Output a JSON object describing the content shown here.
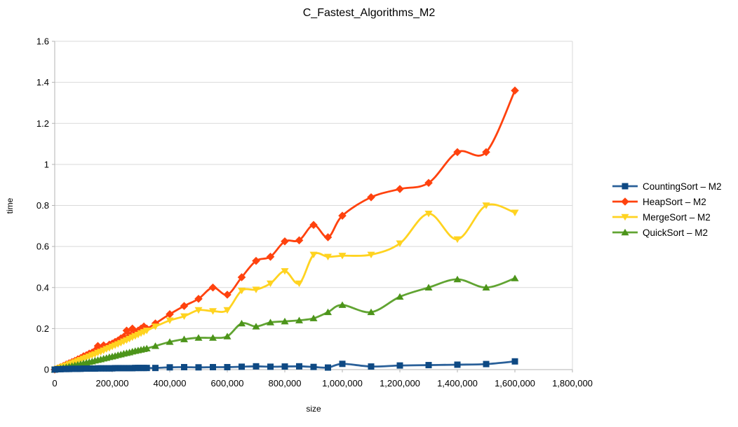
{
  "title": "C_Fastest_Algorithms_M2",
  "axes": {
    "x": {
      "label": "size",
      "min": 0,
      "max": 1800000,
      "tick_step": 200000,
      "tick_labels": [
        "0",
        "200,000",
        "400,000",
        "600,000",
        "800,000",
        "1,000,000",
        "1,200,000",
        "1,400,000",
        "1,600,000",
        "1,800,000"
      ]
    },
    "y": {
      "label": "time",
      "min": 0,
      "max": 1.6,
      "tick_step": 0.2,
      "tick_labels": [
        "0",
        "0.2",
        "0.4",
        "0.6",
        "0.8",
        "1",
        "1.2",
        "1.4",
        "1.6"
      ]
    }
  },
  "colors": {
    "background": "#ffffff",
    "gridline": "#d9d9d9",
    "axis": "#b3b3b3",
    "text": "#000000",
    "countingsort": "#0E4983",
    "heapsort": "#FF420E",
    "mergesort": "#FFD320",
    "quicksort": "#4C941A"
  },
  "chart_data": {
    "type": "line",
    "title": "C_Fastest_Algorithms_M2",
    "xlabel": "size",
    "ylabel": "time",
    "xlim": [
      0,
      1800000
    ],
    "ylim": [
      0,
      1.6
    ],
    "x_tick_step": 200000,
    "y_tick_step": 0.2,
    "grid": true,
    "smooth": true,
    "legend_position": "right",
    "x": [
      0,
      10000,
      20000,
      30000,
      40000,
      50000,
      60000,
      70000,
      80000,
      90000,
      100000,
      110000,
      120000,
      130000,
      140000,
      150000,
      160000,
      170000,
      180000,
      190000,
      200000,
      210000,
      220000,
      230000,
      240000,
      250000,
      260000,
      270000,
      280000,
      290000,
      300000,
      310000,
      320000,
      350000,
      400000,
      450000,
      500000,
      550000,
      600000,
      650000,
      700000,
      750000,
      800000,
      850000,
      900000,
      950000,
      1000000,
      1100000,
      1200000,
      1300000,
      1400000,
      1500000,
      1600000
    ],
    "draw_order": [
      1,
      2,
      3,
      0
    ],
    "series": [
      {
        "name": "CountingSort – M2",
        "slug": "countingsort",
        "marker": "square",
        "line_color": "#2A6099",
        "marker_color": "#0E4983",
        "values": [
          0,
          0.002,
          0.002,
          0.003,
          0.003,
          0.003,
          0.004,
          0.004,
          0.004,
          0.004,
          0.005,
          0.005,
          0.005,
          0.005,
          0.005,
          0.006,
          0.006,
          0.006,
          0.006,
          0.006,
          0.006,
          0.007,
          0.007,
          0.007,
          0.007,
          0.007,
          0.007,
          0.007,
          0.008,
          0.008,
          0.008,
          0.008,
          0.008,
          0.008,
          0.011,
          0.012,
          0.011,
          0.012,
          0.012,
          0.014,
          0.016,
          0.014,
          0.015,
          0.016,
          0.013,
          0.01,
          0.028,
          0.015,
          0.02,
          0.022,
          0.024,
          0.027,
          0.04
        ]
      },
      {
        "name": "HeapSort – M2",
        "slug": "heapsort",
        "marker": "diamond",
        "line_color": "#FF420E",
        "marker_color": "#FF420E",
        "values": [
          0,
          0.006,
          0.012,
          0.018,
          0.025,
          0.031,
          0.037,
          0.043,
          0.05,
          0.056,
          0.065,
          0.07,
          0.078,
          0.083,
          0.092,
          0.115,
          0.1,
          0.118,
          0.11,
          0.122,
          0.127,
          0.135,
          0.142,
          0.152,
          0.16,
          0.19,
          0.165,
          0.2,
          0.175,
          0.19,
          0.2,
          0.21,
          0.2,
          0.225,
          0.27,
          0.31,
          0.345,
          0.4,
          0.365,
          0.45,
          0.53,
          0.55,
          0.625,
          0.63,
          0.705,
          0.645,
          0.75,
          0.84,
          0.88,
          0.91,
          1.06,
          1.06,
          1.36
        ]
      },
      {
        "name": "MergeSort – M2",
        "slug": "mergesort",
        "marker": "triangle-down",
        "line_color": "#FFD320",
        "marker_color": "#FFD320",
        "values": [
          0,
          0.005,
          0.01,
          0.015,
          0.02,
          0.026,
          0.031,
          0.036,
          0.042,
          0.047,
          0.053,
          0.058,
          0.064,
          0.07,
          0.075,
          0.082,
          0.087,
          0.093,
          0.1,
          0.105,
          0.112,
          0.118,
          0.124,
          0.13,
          0.137,
          0.143,
          0.15,
          0.157,
          0.163,
          0.17,
          0.177,
          0.183,
          0.19,
          0.21,
          0.24,
          0.26,
          0.29,
          0.285,
          0.29,
          0.385,
          0.39,
          0.42,
          0.48,
          0.42,
          0.56,
          0.55,
          0.555,
          0.56,
          0.615,
          0.76,
          0.635,
          0.8,
          0.765
        ]
      },
      {
        "name": "QuickSort – M2",
        "slug": "quicksort",
        "marker": "triangle-up",
        "line_color": "#61A432",
        "marker_color": "#4C941A",
        "values": [
          0,
          0.003,
          0.006,
          0.009,
          0.012,
          0.015,
          0.018,
          0.021,
          0.024,
          0.027,
          0.031,
          0.034,
          0.037,
          0.04,
          0.044,
          0.047,
          0.05,
          0.054,
          0.057,
          0.061,
          0.064,
          0.067,
          0.071,
          0.074,
          0.078,
          0.081,
          0.084,
          0.088,
          0.091,
          0.094,
          0.097,
          0.1,
          0.103,
          0.115,
          0.135,
          0.148,
          0.155,
          0.155,
          0.162,
          0.225,
          0.21,
          0.23,
          0.235,
          0.24,
          0.25,
          0.28,
          0.315,
          0.28,
          0.355,
          0.4,
          0.44,
          0.4,
          0.445
        ]
      }
    ]
  }
}
